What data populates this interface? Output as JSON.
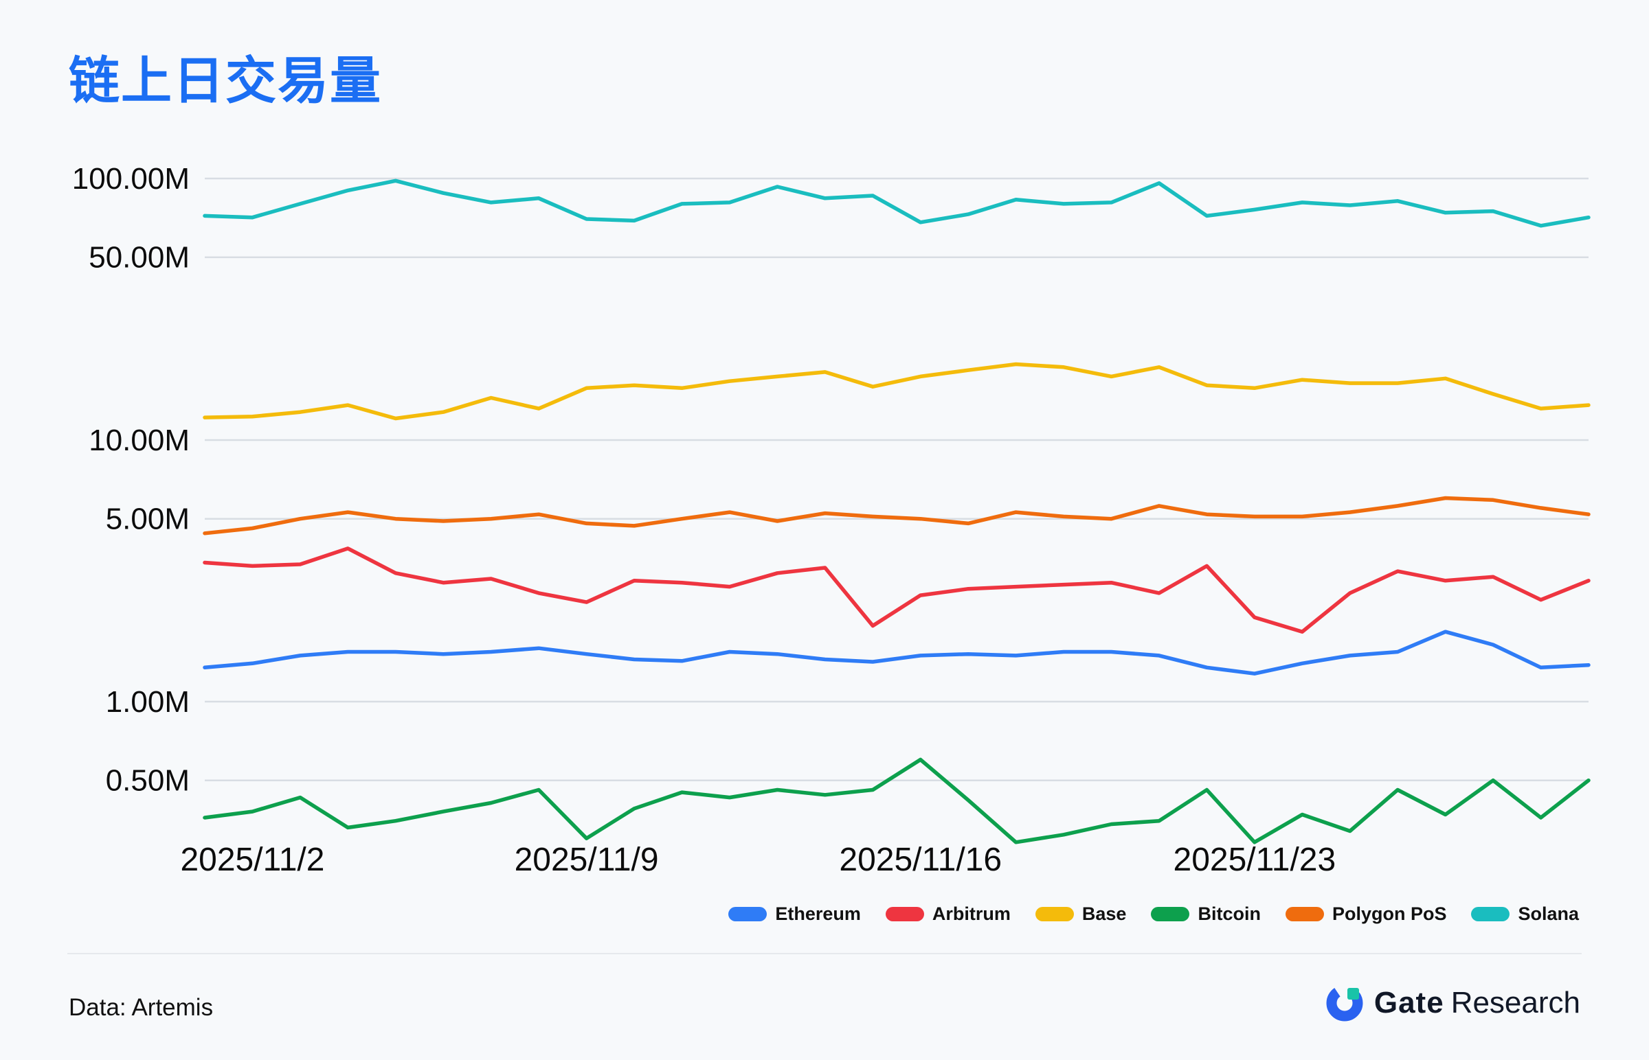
{
  "title": "链上日交易量",
  "footer": {
    "source": "Data: Artemis",
    "brand_bold": "Gate",
    "brand_regular": "Research"
  },
  "colors": {
    "title": "#1b6ef3",
    "grid": "#d8dde3",
    "text": "#0c0c0c",
    "background": "#f7f9fb"
  },
  "chart_data": {
    "type": "line",
    "title": "链上日交易量",
    "scale": "log",
    "unit": "M",
    "grid": "horizontal-only",
    "legend_position": "bottom-right",
    "ylim": [
      0.25,
      130
    ],
    "y_gridlines": [
      100,
      50,
      10,
      5,
      1,
      0.5
    ],
    "y_tick_labels": [
      "100.00M",
      "50.00M",
      "10.00M",
      "5.00M",
      "1.00M",
      "0.50M"
    ],
    "x": [
      "2025/11/1",
      "2025/11/2",
      "2025/11/3",
      "2025/11/4",
      "2025/11/5",
      "2025/11/6",
      "2025/11/7",
      "2025/11/8",
      "2025/11/9",
      "2025/11/10",
      "2025/11/11",
      "2025/11/12",
      "2025/11/13",
      "2025/11/14",
      "2025/11/15",
      "2025/11/16",
      "2025/11/17",
      "2025/11/18",
      "2025/11/19",
      "2025/11/20",
      "2025/11/21",
      "2025/11/22",
      "2025/11/23",
      "2025/11/24",
      "2025/11/25",
      "2025/11/26",
      "2025/11/27",
      "2025/11/28",
      "2025/11/29",
      "2025/11/30"
    ],
    "x_tick_labels": [
      "2025/11/2",
      "2025/11/9",
      "2025/11/16",
      "2025/11/23"
    ],
    "x_tick_indices": [
      1,
      8,
      15,
      22
    ],
    "series": [
      {
        "name": "Ethereum",
        "color": "#2f7cf6",
        "values": [
          1.35,
          1.4,
          1.5,
          1.55,
          1.55,
          1.52,
          1.55,
          1.6,
          1.52,
          1.45,
          1.43,
          1.55,
          1.52,
          1.45,
          1.42,
          1.5,
          1.52,
          1.5,
          1.55,
          1.55,
          1.5,
          1.35,
          1.28,
          1.4,
          1.5,
          1.55,
          1.85,
          1.65,
          1.35,
          1.38
        ]
      },
      {
        "name": "Arbitrum",
        "color": "#ee3540",
        "values": [
          3.4,
          3.3,
          3.35,
          3.85,
          3.1,
          2.85,
          2.95,
          2.6,
          2.4,
          2.9,
          2.85,
          2.75,
          3.1,
          3.25,
          1.95,
          2.55,
          2.7,
          2.75,
          2.8,
          2.85,
          2.6,
          3.3,
          2.1,
          1.85,
          2.6,
          3.15,
          2.9,
          3.0,
          2.45,
          2.9
        ]
      },
      {
        "name": "Base",
        "color": "#f4bb0b",
        "values": [
          12.2,
          12.3,
          12.8,
          13.6,
          12.1,
          12.8,
          14.5,
          13.2,
          15.8,
          16.2,
          15.8,
          16.8,
          17.5,
          18.2,
          16.0,
          17.5,
          18.5,
          19.5,
          19.0,
          17.5,
          19.0,
          16.2,
          15.8,
          17.0,
          16.5,
          16.5,
          17.2,
          15.0,
          13.2,
          13.6
        ]
      },
      {
        "name": "Bitcoin",
        "color": "#0da04d",
        "values": [
          0.36,
          0.38,
          0.43,
          0.33,
          0.35,
          0.38,
          0.41,
          0.46,
          0.3,
          0.39,
          0.45,
          0.43,
          0.46,
          0.44,
          0.46,
          0.6,
          0.42,
          0.29,
          0.31,
          0.34,
          0.35,
          0.46,
          0.29,
          0.37,
          0.32,
          0.46,
          0.37,
          0.5,
          0.36,
          0.5
        ]
      },
      {
        "name": "Polygon PoS",
        "color": "#ef6c0e",
        "values": [
          4.4,
          4.6,
          5.0,
          5.3,
          5.0,
          4.9,
          5.0,
          5.2,
          4.8,
          4.7,
          5.0,
          5.3,
          4.9,
          5.25,
          5.1,
          5.0,
          4.8,
          5.3,
          5.1,
          5.0,
          5.6,
          5.2,
          5.1,
          5.1,
          5.3,
          5.6,
          6.0,
          5.9,
          5.5,
          5.2
        ]
      },
      {
        "name": "Solana",
        "color": "#1abdbf",
        "values": [
          72,
          71,
          80,
          90,
          98,
          88,
          81,
          84,
          70,
          69,
          80,
          81,
          93,
          84,
          86,
          68,
          73,
          83,
          80,
          81,
          96,
          72,
          76,
          81,
          79,
          82,
          74,
          75,
          66,
          71
        ]
      }
    ]
  }
}
